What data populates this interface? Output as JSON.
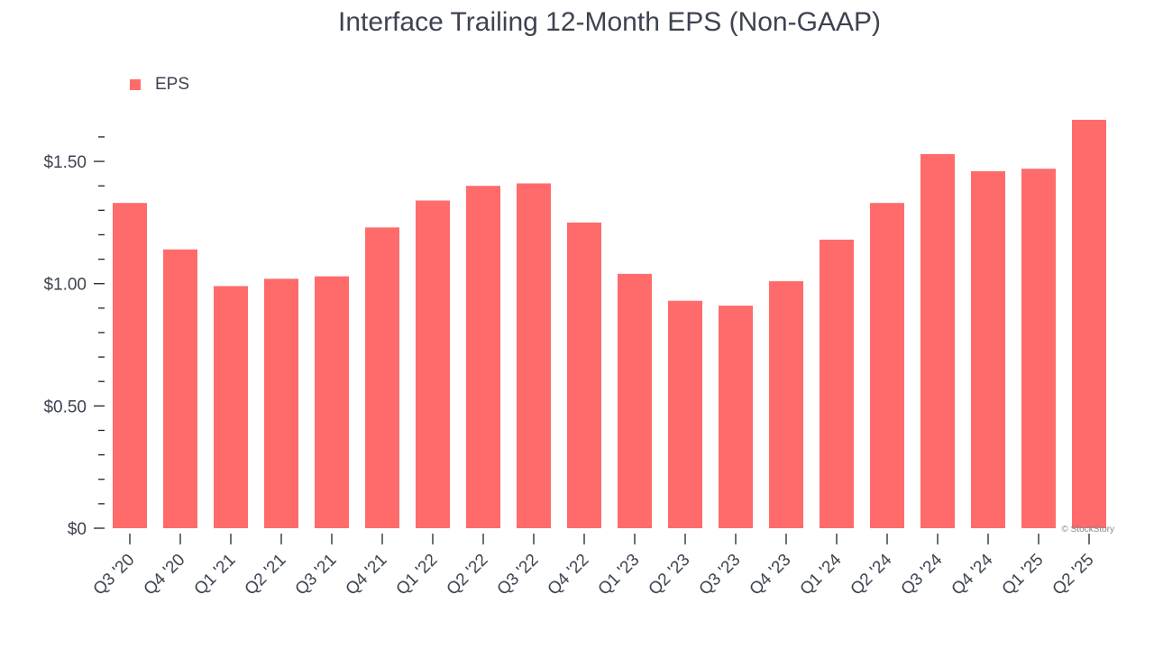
{
  "chart_data": {
    "type": "bar",
    "title": "Interface Trailing 12-Month EPS (Non-GAAP)",
    "xlabel": "",
    "ylabel": "",
    "legend": {
      "entries": [
        "EPS"
      ],
      "placement": "top-left"
    },
    "categories": [
      "Q3 '20",
      "Q4 '20",
      "Q1 '21",
      "Q2 '21",
      "Q3 '21",
      "Q4 '21",
      "Q1 '22",
      "Q2 '22",
      "Q3 '22",
      "Q4 '22",
      "Q1 '23",
      "Q2 '23",
      "Q3 '23",
      "Q4 '23",
      "Q1 '24",
      "Q2 '24",
      "Q3 '24",
      "Q4 '24",
      "Q1 '25",
      "Q2 '25"
    ],
    "series": [
      {
        "name": "EPS",
        "values": [
          1.33,
          1.14,
          0.99,
          1.02,
          1.03,
          1.23,
          1.34,
          1.4,
          1.41,
          1.25,
          1.04,
          0.93,
          0.91,
          1.01,
          1.18,
          1.33,
          1.53,
          1.46,
          1.47,
          1.67
        ]
      }
    ],
    "ylim": [
      0,
      1.6
    ],
    "yticks": [
      0,
      0.5,
      1.0,
      1.5
    ],
    "ytick_labels": [
      "$0",
      "$0.50",
      "$1.00",
      "$1.50"
    ],
    "grid": false,
    "colors": {
      "bar": "#ff6b6b",
      "text": "#3d4351"
    },
    "watermark": "© StockStory"
  }
}
